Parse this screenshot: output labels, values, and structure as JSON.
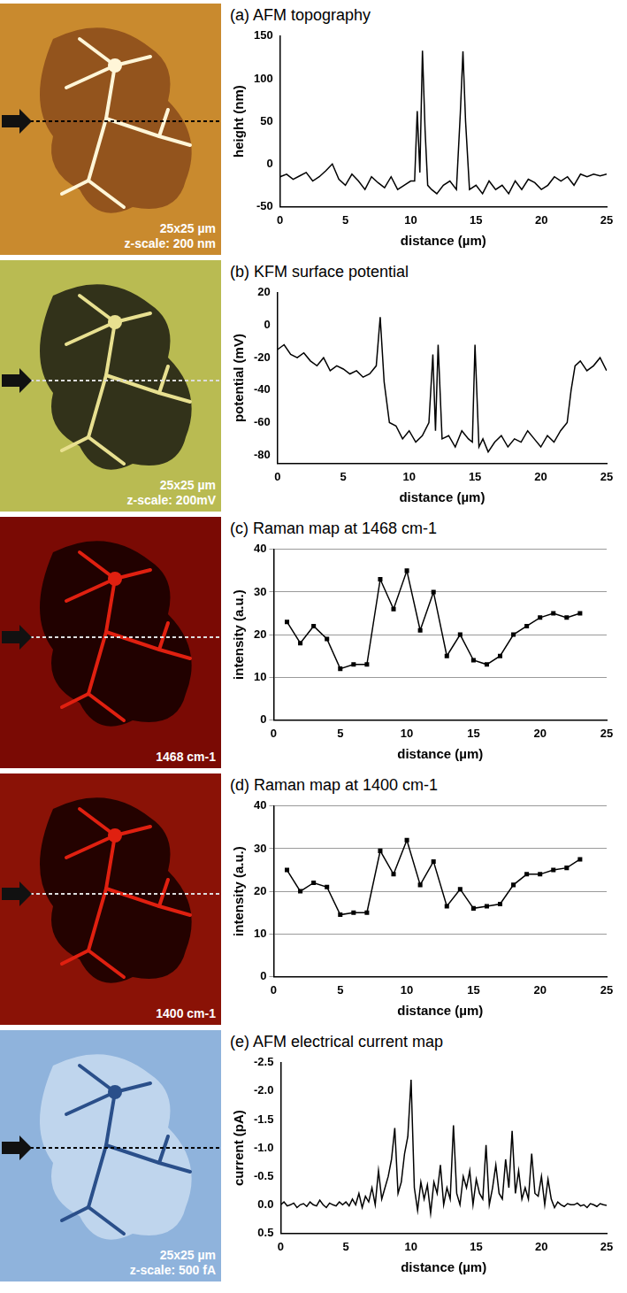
{
  "chart_data": [
    {
      "type": "line",
      "title": "(a) AFM topography",
      "image_text": [
        "25x25 µm",
        "z-scale: 200 nm"
      ],
      "x_label": "distance (µm)",
      "y_label": "height (nm)",
      "color": "#000000",
      "marker": "none",
      "line_style": "solid",
      "grid": false,
      "x": [
        0,
        0.5,
        1,
        1.5,
        2,
        2.5,
        3,
        3.5,
        4,
        4.5,
        5,
        5.5,
        6,
        6.5,
        7,
        7.5,
        8,
        8.5,
        9,
        9.5,
        10,
        10.3,
        10.5,
        10.7,
        10.9,
        11.1,
        11.3,
        11.6,
        12,
        12.5,
        13,
        13.5,
        13.8,
        14,
        14.2,
        14.5,
        15,
        15.5,
        16,
        16.5,
        17,
        17.5,
        18,
        18.5,
        19,
        19.5,
        20,
        20.5,
        21,
        21.5,
        22,
        22.5,
        23,
        23.5,
        24,
        24.5,
        25
      ],
      "values": [
        -15,
        -12,
        -18,
        -14,
        -10,
        -20,
        -15,
        -8,
        0,
        -18,
        -25,
        -12,
        -20,
        -30,
        -15,
        -22,
        -28,
        -15,
        -30,
        -25,
        -20,
        -20,
        62,
        -10,
        133,
        40,
        -25,
        -30,
        -35,
        -25,
        -20,
        -30,
        60,
        132,
        50,
        -30,
        -25,
        -35,
        -20,
        -30,
        -25,
        -35,
        -20,
        -30,
        -18,
        -22,
        -30,
        -25,
        -15,
        -20,
        -15,
        -25,
        -12,
        -15,
        -12,
        -14,
        -12
      ],
      "xlim": [
        0,
        25
      ],
      "xticks": [
        0,
        5,
        10,
        15,
        20,
        25
      ],
      "ylim": [
        -50,
        150
      ],
      "yticks": [
        -50,
        0,
        50,
        100,
        150
      ]
    },
    {
      "type": "line",
      "title": "(b) KFM surface potential",
      "image_text": [
        "25x25 µm",
        "z-scale: 200mV"
      ],
      "x_label": "distance (µm)",
      "y_label": "potential (mV)",
      "color": "#000000",
      "marker": "none",
      "line_style": "solid",
      "grid": false,
      "x": [
        0,
        0.5,
        1,
        1.5,
        2,
        2.5,
        3,
        3.5,
        4,
        4.5,
        5,
        5.5,
        6,
        6.5,
        7,
        7.5,
        7.8,
        8.1,
        8.5,
        9,
        9.5,
        10,
        10.5,
        11,
        11.5,
        11.8,
        12,
        12.2,
        12.5,
        13,
        13.5,
        14,
        14.5,
        14.8,
        15,
        15.3,
        15.6,
        16,
        16.5,
        17,
        17.5,
        18,
        18.5,
        19,
        19.5,
        20,
        20.5,
        21,
        21.5,
        22,
        22.3,
        22.6,
        23,
        23.5,
        24,
        24.5,
        25
      ],
      "values": [
        -15,
        -12,
        -18,
        -20,
        -17,
        -22,
        -25,
        -20,
        -28,
        -25,
        -27,
        -30,
        -28,
        -32,
        -30,
        -25,
        5,
        -35,
        -60,
        -62,
        -70,
        -65,
        -72,
        -68,
        -60,
        -18,
        -65,
        -12,
        -70,
        -68,
        -75,
        -65,
        -70,
        -72,
        -12,
        -75,
        -70,
        -78,
        -72,
        -68,
        -75,
        -70,
        -72,
        -65,
        -70,
        -75,
        -68,
        -72,
        -65,
        -60,
        -40,
        -25,
        -22,
        -28,
        -25,
        -20,
        -28
      ],
      "xlim": [
        0,
        25
      ],
      "xticks": [
        0,
        5,
        10,
        15,
        20,
        25
      ],
      "ylim": [
        -85,
        20
      ],
      "yticks": [
        -80,
        -60,
        -40,
        -20,
        0,
        20
      ]
    },
    {
      "type": "line",
      "title": "(c) Raman map at 1468 cm-1",
      "image_text": [
        "1468 cm-1"
      ],
      "x_label": "distance (µm)",
      "y_label": "intensity (a.u.)",
      "color": "#000000",
      "marker": "square",
      "line_style": "solid",
      "grid": "y",
      "x": [
        1,
        2,
        3,
        4,
        5,
        6,
        7,
        8,
        9,
        10,
        11,
        12,
        13,
        14,
        15,
        16,
        17,
        18,
        19,
        20,
        21,
        22,
        23
      ],
      "values": [
        23,
        18,
        22,
        19,
        12,
        13,
        13,
        33,
        26,
        35,
        21,
        30,
        15,
        20,
        14,
        13,
        15,
        20,
        22,
        24,
        25,
        24,
        25
      ],
      "xlim": [
        0,
        25
      ],
      "xticks": [
        0,
        5,
        10,
        15,
        20,
        25
      ],
      "ylim": [
        0,
        40
      ],
      "yticks": [
        0,
        10,
        20,
        30,
        40
      ]
    },
    {
      "type": "line",
      "title": "(d) Raman map at 1400 cm-1",
      "image_text": [
        "1400 cm-1"
      ],
      "x_label": "distance (µm)",
      "y_label": "intensity (a.u.)",
      "color": "#000000",
      "marker": "square",
      "line_style": "solid",
      "grid": "y",
      "x": [
        1,
        2,
        3,
        4,
        5,
        6,
        7,
        8,
        9,
        10,
        11,
        12,
        13,
        14,
        15,
        16,
        17,
        18,
        19,
        20,
        21,
        22,
        23
      ],
      "values": [
        25,
        20,
        22,
        21,
        14.5,
        15,
        15,
        29.5,
        24,
        32,
        21.5,
        27,
        16.5,
        20.5,
        16,
        16.5,
        17,
        21.5,
        24,
        24,
        25,
        25.5,
        27.5
      ],
      "xlim": [
        0,
        25
      ],
      "xticks": [
        0,
        5,
        10,
        15,
        20,
        25
      ],
      "ylim": [
        0,
        40
      ],
      "yticks": [
        0,
        10,
        20,
        30,
        40
      ]
    },
    {
      "type": "line",
      "title": "(e) AFM electrical current map",
      "image_text": [
        "25x25 µm",
        "z-scale: 500 fA"
      ],
      "x_label": "distance (µm)",
      "y_label": "current (pA)",
      "color": "#000000",
      "marker": "none",
      "line_style": "solid",
      "grid": false,
      "x": [
        0,
        0.25,
        0.5,
        0.75,
        1,
        1.25,
        1.5,
        1.75,
        2,
        2.25,
        2.5,
        2.75,
        3,
        3.25,
        3.5,
        3.75,
        4,
        4.25,
        4.5,
        4.75,
        5,
        5.25,
        5.5,
        5.75,
        6,
        6.25,
        6.5,
        6.75,
        7,
        7.25,
        7.5,
        7.75,
        8,
        8.25,
        8.5,
        8.75,
        9,
        9.25,
        9.5,
        9.75,
        10,
        10.25,
        10.5,
        10.75,
        11,
        11.25,
        11.5,
        11.75,
        12,
        12.25,
        12.5,
        12.75,
        13,
        13.25,
        13.5,
        13.75,
        14,
        14.25,
        14.5,
        14.75,
        15,
        15.25,
        15.5,
        15.75,
        16,
        16.25,
        16.5,
        16.75,
        17,
        17.25,
        17.5,
        17.75,
        18,
        18.25,
        18.5,
        18.75,
        19,
        19.25,
        19.5,
        19.75,
        20,
        20.25,
        20.5,
        20.75,
        21,
        21.25,
        21.5,
        21.75,
        22,
        22.25,
        22.5,
        22.75,
        23,
        23.25,
        23.5,
        23.75,
        24,
        24.25,
        24.5,
        24.75,
        25
      ],
      "values": [
        0,
        -0.05,
        0.02,
        0,
        -0.03,
        0.05,
        0,
        -0.02,
        0.03,
        -0.05,
        0,
        0.02,
        -0.08,
        0,
        0.05,
        -0.03,
        0,
        0.02,
        -0.05,
        0,
        -0.05,
        0.02,
        -0.1,
        0,
        -0.2,
        0.05,
        -0.15,
        -0.05,
        -0.3,
        0,
        -0.6,
        -0.1,
        -0.3,
        -0.5,
        -0.8,
        -1.35,
        -0.2,
        -0.4,
        -0.9,
        -1.2,
        -2.2,
        -0.3,
        0.1,
        -0.4,
        -0.1,
        -0.35,
        0.15,
        -0.4,
        -0.2,
        -0.7,
        0,
        -0.3,
        -0.1,
        -1.4,
        -0.2,
        0,
        -0.5,
        -0.3,
        -0.6,
        0,
        -0.45,
        -0.2,
        -0.1,
        -1.05,
        0,
        -0.3,
        -0.7,
        -0.2,
        -0.1,
        -0.8,
        -0.3,
        -1.3,
        -0.2,
        -0.6,
        -0.1,
        -0.3,
        -0.1,
        -0.9,
        -0.2,
        -0.15,
        -0.5,
        0,
        -0.45,
        -0.1,
        0.05,
        -0.05,
        0,
        0.03,
        -0.02,
        0,
        0,
        -0.03,
        0.02,
        0,
        0.05,
        -0.02,
        0,
        0.03,
        -0.02,
        0,
        0.01
      ],
      "xlim": [
        0,
        25
      ],
      "xticks": [
        0,
        5,
        10,
        15,
        20,
        25
      ],
      "ylim": [
        0.5,
        -2.5
      ],
      "yticks": [
        -2.5,
        {
          "value": -2,
          "label": "-2.0"
        },
        -1.5,
        {
          "value": -1,
          "label": "-1.0"
        },
        -0.5,
        {
          "value": 0,
          "label": "0.0"
        },
        0.5
      ]
    }
  ]
}
